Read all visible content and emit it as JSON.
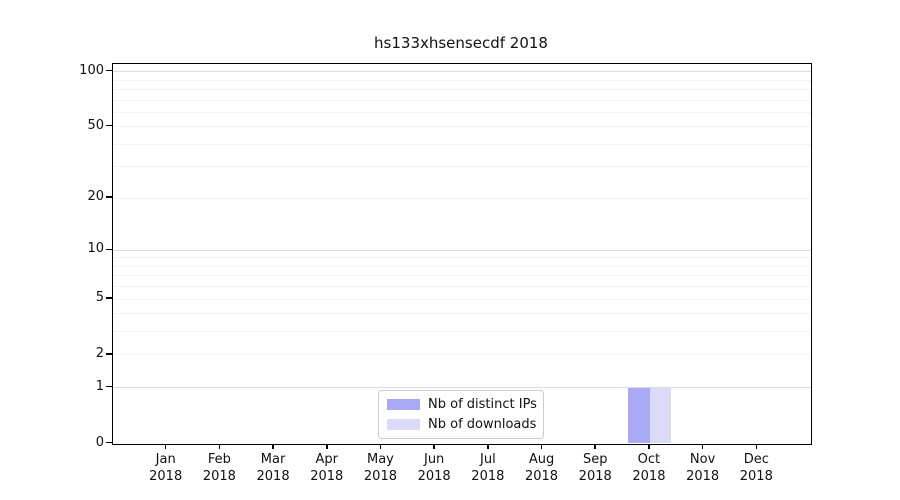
{
  "chart_data": {
    "type": "bar",
    "title": "hs133xhsensecdf 2018",
    "categories": [
      "Jan",
      "Feb",
      "Mar",
      "Apr",
      "May",
      "Jun",
      "Jul",
      "Aug",
      "Sep",
      "Oct",
      "Nov",
      "Dec"
    ],
    "category_year": "2018",
    "series": [
      {
        "name": "Nb of distinct IPs",
        "color": "#a9a9f6",
        "values": [
          0,
          0,
          0,
          0,
          0,
          0,
          0,
          0,
          0,
          1,
          0,
          0
        ]
      },
      {
        "name": "Nb of downloads",
        "color": "#dadaf9",
        "values": [
          0,
          0,
          0,
          0,
          0,
          0,
          0,
          0,
          0,
          1,
          0,
          0
        ]
      }
    ],
    "yticks": [
      0,
      1,
      2,
      5,
      10,
      20,
      50,
      100
    ],
    "ylim": [
      0,
      110
    ],
    "scale": "log1p",
    "grid": "horizontal",
    "grid_minor_values": [
      2,
      3,
      4,
      5,
      6,
      7,
      8,
      9,
      20,
      30,
      40,
      50,
      60,
      70,
      80,
      90
    ],
    "grid_major_values": [
      1,
      10,
      100
    ],
    "legend_position": "lower-center",
    "colors": {
      "spine": "#000000",
      "grid_minor": "#f2f2f2",
      "grid_major": "#dcdcdc",
      "text": "#111111"
    }
  }
}
